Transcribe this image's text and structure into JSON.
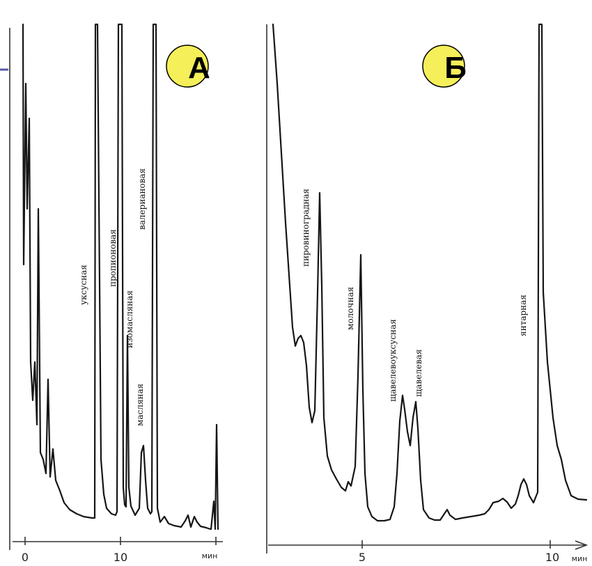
{
  "chart_data": [
    {
      "type": "line",
      "panel": "А",
      "x_unit": "мин",
      "x_ticks": [
        {
          "value": 0,
          "label": "0"
        },
        {
          "value": 10,
          "label": "10"
        }
      ],
      "xlim": [
        -0.5,
        21
      ],
      "peaks": [
        {
          "name": "уксусная",
          "x": 8.0
        },
        {
          "name": "пропионовая",
          "x": 10.0
        },
        {
          "name": "изомасляная",
          "x": 11.0
        },
        {
          "name": "масляная",
          "x": 12.5
        },
        {
          "name": "валериановая",
          "x": 14.0
        }
      ],
      "annotation_color": "#f5ef5a"
    },
    {
      "type": "line",
      "panel": "Б",
      "x_unit": "мин",
      "x_ticks": [
        {
          "value": 5,
          "label": "5"
        },
        {
          "value": 10,
          "label": "10"
        }
      ],
      "xlim": [
        0.5,
        12
      ],
      "peaks": [
        {
          "name": "пировиноградная",
          "x": 3.0
        },
        {
          "name": "молочная",
          "x": 5.0
        },
        {
          "name": "щавелевоуксусная",
          "x": 6.6
        },
        {
          "name": "щавелевая",
          "x": 7.0
        },
        {
          "name": "янтарная",
          "x": 9.8
        }
      ],
      "annotation_color": "#f5ef5a"
    }
  ]
}
